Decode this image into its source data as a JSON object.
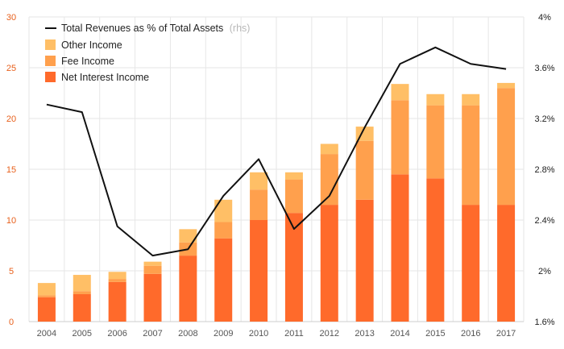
{
  "chart_data": {
    "type": "bar",
    "stacked": true,
    "categories": [
      "2004",
      "2005",
      "2006",
      "2007",
      "2008",
      "2009",
      "2010",
      "2011",
      "2012",
      "2013",
      "2014",
      "2015",
      "2016",
      "2017"
    ],
    "series": [
      {
        "name": "Net Interest Income",
        "color": "#ff6a2b",
        "axis": "left",
        "values": [
          2.4,
          2.7,
          3.9,
          4.7,
          6.5,
          8.2,
          10.0,
          10.7,
          11.5,
          12.0,
          14.5,
          14.1,
          11.5,
          11.5
        ]
      },
      {
        "name": "Fee Income",
        "color": "#ffa04d",
        "axis": "left",
        "values": [
          0.2,
          0.3,
          0.3,
          0.8,
          1.3,
          1.6,
          3.0,
          3.3,
          5.0,
          5.8,
          7.3,
          7.2,
          9.8,
          11.5
        ]
      },
      {
        "name": "Other Income",
        "color": "#ffbf66",
        "axis": "left",
        "values": [
          1.2,
          1.6,
          0.7,
          0.4,
          1.3,
          2.2,
          1.7,
          0.7,
          1.0,
          1.4,
          1.6,
          1.1,
          1.1,
          0.5
        ]
      },
      {
        "name": "Total Revenues as % of Total Assets",
        "type": "line",
        "color": "#111111",
        "axis": "right",
        "values": [
          3.31,
          3.25,
          2.35,
          2.12,
          2.17,
          2.59,
          2.88,
          2.33,
          2.59,
          3.13,
          3.63,
          3.76,
          3.63,
          3.59
        ]
      }
    ],
    "y_left": {
      "ylim": [
        0,
        30
      ],
      "ticks": [
        "0",
        "5",
        "10",
        "15",
        "20",
        "25",
        "30"
      ],
      "tick_values": [
        0,
        5,
        10,
        15,
        20,
        25,
        30
      ],
      "color": "#e8601c"
    },
    "y_right": {
      "ylim": [
        1.6,
        4.0
      ],
      "ticks": [
        "1.6%",
        "2%",
        "2.4%",
        "2.8%",
        "3.2%",
        "3.6%",
        "4%"
      ],
      "tick_values": [
        1.6,
        2.0,
        2.4,
        2.8,
        3.2,
        3.6,
        4.0
      ]
    },
    "legend": {
      "position": "top-left",
      "items": [
        {
          "label": "Total Revenues as % of Total Assets",
          "note": "(rhs)",
          "kind": "line",
          "color": "#111111"
        },
        {
          "label": "Other Income",
          "kind": "box",
          "color": "#ffbf66"
        },
        {
          "label": "Fee Income",
          "kind": "box",
          "color": "#ffa04d"
        },
        {
          "label": "Net Interest Income",
          "kind": "box",
          "color": "#ff6a2b"
        }
      ]
    },
    "grid": true,
    "gridline_color": "#e6e6e6"
  }
}
